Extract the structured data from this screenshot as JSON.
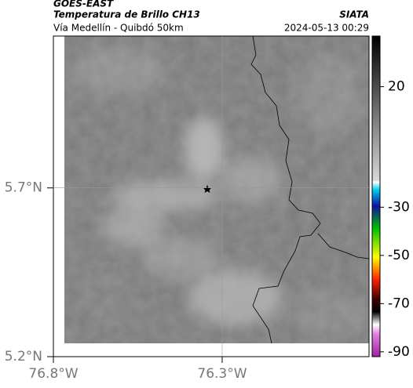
{
  "header": {
    "source": "GOES-EAST",
    "title": "Temperatura de Brillo CH13",
    "subtitle": "Vía Medellín - Quibdó 50km",
    "organization": "SIATA",
    "datetime": "2024-05-13 00:29"
  },
  "map": {
    "latlim": [
      5.2,
      6.15
    ],
    "lonlim": [
      -76.8,
      -75.865
    ],
    "latticks": [
      {
        "value": 5.2,
        "label": "5.2°N"
      },
      {
        "value": 5.7,
        "label": "5.7°N"
      }
    ],
    "lonticks": [
      {
        "value": -76.8,
        "label": "76.8°W"
      },
      {
        "value": -76.3,
        "label": "76.3°W"
      }
    ],
    "grid": true
  },
  "colorbar": {
    "lim": [
      -92,
      41
    ],
    "ticks": [
      20,
      -30,
      -50,
      -70,
      -90
    ]
  }
}
